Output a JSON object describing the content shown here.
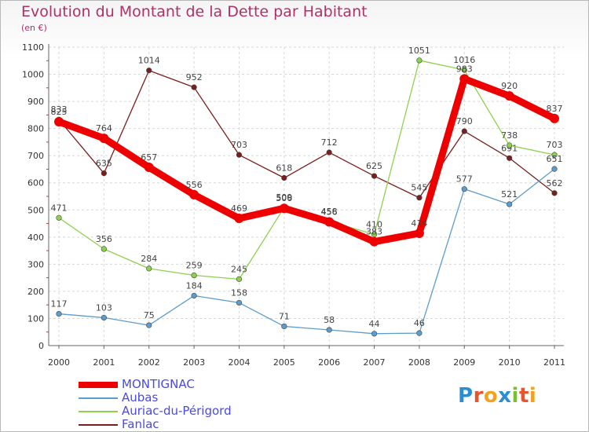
{
  "title": "Evolution du Montant de la Dette par Habitant",
  "subtitle": "(en €)",
  "logo": {
    "letters": [
      "P",
      "r",
      "o",
      "x",
      "i",
      "t",
      "i"
    ],
    "colors": [
      "#2a8fd0",
      "#e8542b",
      "#f2a21c",
      "#2a8fd0",
      "#7bbf2a",
      "#e8542b",
      "#f2a21c"
    ]
  },
  "chart_data": {
    "type": "line",
    "title": "Evolution du Montant de la Dette par Habitant",
    "subtitle": "(en €)",
    "categories": [
      "2000",
      "2001",
      "2002",
      "2003",
      "2004",
      "2005",
      "2006",
      "2007",
      "2008",
      "2009",
      "2010",
      "2011"
    ],
    "ylim": [
      0,
      1100
    ],
    "yticks": [
      0,
      100,
      200,
      300,
      400,
      500,
      600,
      700,
      800,
      900,
      1000,
      1100
    ],
    "grid": true,
    "legend_position": "bottom-left",
    "series": [
      {
        "name": "Fanlac",
        "color": "#7a1e1e",
        "values": [
          833,
          635,
          1014,
          952,
          703,
          618,
          712,
          625,
          545,
          790,
          691,
          562
        ]
      },
      {
        "name": "Auriac-du-Périgord",
        "color": "#8fd14f",
        "values": [
          471,
          356,
          284,
          259,
          245,
          509,
          458,
          410,
          1051,
          1016,
          738,
          703
        ]
      },
      {
        "name": "Aubas",
        "color": "#5d9ccc",
        "values": [
          117,
          103,
          75,
          184,
          158,
          71,
          58,
          44,
          46,
          577,
          521,
          651
        ]
      },
      {
        "name": "MONTIGNAC",
        "color": "#ee0000",
        "values": [
          825,
          764,
          657,
          556,
          469,
          506,
          456,
          383,
          414,
          983,
          920,
          837
        ]
      }
    ]
  }
}
